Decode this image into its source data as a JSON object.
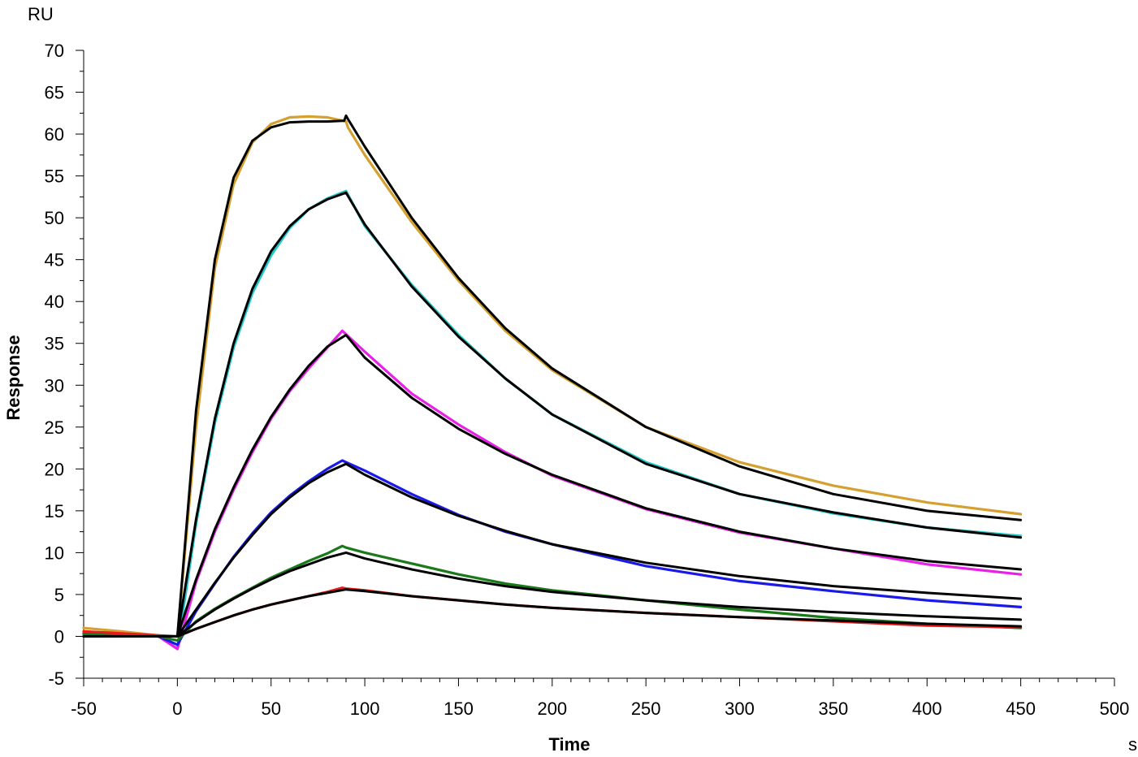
{
  "chart_data": {
    "type": "line",
    "title": "",
    "xlabel": "Time",
    "ylabel": "Response",
    "x_unit": "s",
    "y_unit": "RU",
    "xlim": [
      -50,
      500
    ],
    "ylim": [
      -5,
      70
    ],
    "x_ticks": [
      -50,
      0,
      50,
      100,
      150,
      200,
      250,
      300,
      350,
      400,
      450,
      500
    ],
    "y_ticks": [
      -5,
      0,
      5,
      10,
      15,
      20,
      25,
      30,
      35,
      40,
      45,
      50,
      55,
      60,
      65,
      70
    ],
    "x_tick_labels": [
      "-50",
      "0",
      "50",
      "100",
      "150",
      "200",
      "250",
      "300",
      "350",
      "400",
      "450",
      "500"
    ],
    "y_tick_labels": [
      "-5",
      "0",
      "5",
      "10",
      "15",
      "20",
      "25",
      "30",
      "35",
      "40",
      "45",
      "50",
      "55",
      "60",
      "65",
      "70"
    ],
    "grid": false,
    "legend": "none",
    "series": [
      {
        "color": "#d4a030",
        "x": [
          -50,
          -30,
          -10,
          0,
          10,
          20,
          30,
          40,
          50,
          60,
          70,
          80,
          90,
          91,
          100,
          125,
          150,
          175,
          200,
          250,
          300,
          350,
          400,
          450
        ],
        "y": [
          1.0,
          0.6,
          0.1,
          0.0,
          25.0,
          44.0,
          54.0,
          59.0,
          61.2,
          62.0,
          62.1,
          62.0,
          61.5,
          60.8,
          57.5,
          49.5,
          42.5,
          36.5,
          31.8,
          25.0,
          20.8,
          18.0,
          16.0,
          14.6
        ]
      },
      {
        "color": "#20c8c8",
        "x": [
          -50,
          -10,
          0,
          10,
          20,
          30,
          40,
          50,
          60,
          70,
          80,
          90,
          100,
          125,
          150,
          175,
          200,
          250,
          300,
          350,
          400,
          450
        ],
        "y": [
          0.5,
          0.1,
          -1.5,
          13.5,
          25.5,
          34.5,
          41.0,
          45.5,
          48.8,
          51.0,
          52.3,
          53.2,
          49.0,
          42.0,
          36.0,
          30.8,
          26.5,
          20.8,
          17.0,
          14.7,
          13.0,
          12.0
        ]
      },
      {
        "color": "#e820e8",
        "x": [
          -50,
          -10,
          0,
          10,
          20,
          30,
          40,
          50,
          60,
          70,
          80,
          88,
          100,
          125,
          150,
          175,
          200,
          250,
          300,
          350,
          400,
          450
        ],
        "y": [
          0.5,
          0.0,
          -1.5,
          6.5,
          12.5,
          17.5,
          22.0,
          26.0,
          29.3,
          32.0,
          34.5,
          36.5,
          34.0,
          29.0,
          25.3,
          22.0,
          19.2,
          15.2,
          12.4,
          10.5,
          8.6,
          7.4
        ]
      },
      {
        "color": "#1a1ae8",
        "x": [
          -50,
          -10,
          0,
          10,
          20,
          30,
          40,
          50,
          60,
          70,
          80,
          88,
          90,
          100,
          125,
          150,
          175,
          200,
          250,
          300,
          350,
          400,
          450
        ],
        "y": [
          0.3,
          0.0,
          -1.0,
          3.0,
          6.3,
          9.5,
          12.3,
          14.8,
          16.8,
          18.5,
          20.0,
          21.0,
          20.8,
          19.8,
          17.0,
          14.5,
          12.5,
          11.0,
          8.4,
          6.6,
          5.4,
          4.3,
          3.5
        ]
      },
      {
        "color": "#1a7a1a",
        "x": [
          -50,
          -10,
          0,
          10,
          20,
          30,
          40,
          50,
          60,
          70,
          80,
          88,
          90,
          100,
          125,
          150,
          175,
          200,
          250,
          300,
          350,
          400,
          450
        ],
        "y": [
          0.3,
          0.0,
          -0.5,
          1.8,
          3.3,
          4.6,
          5.8,
          7.0,
          8.0,
          9.0,
          9.9,
          10.8,
          10.6,
          10.0,
          8.7,
          7.4,
          6.3,
          5.5,
          4.3,
          3.2,
          2.2,
          1.5,
          1.0
        ]
      },
      {
        "color": "#e81a1a",
        "x": [
          -50,
          -10,
          0,
          10,
          20,
          30,
          40,
          50,
          60,
          70,
          80,
          88,
          90,
          100,
          125,
          150,
          175,
          200,
          250,
          300,
          350,
          400,
          450
        ],
        "y": [
          0.6,
          0.1,
          0.0,
          0.9,
          1.7,
          2.5,
          3.2,
          3.8,
          4.3,
          4.8,
          5.3,
          5.8,
          5.7,
          5.5,
          4.8,
          4.3,
          3.8,
          3.4,
          2.8,
          2.3,
          1.8,
          1.3,
          1.1
        ]
      },
      {
        "color": "#000000",
        "x": [
          -50,
          0,
          10,
          20,
          30,
          40,
          50,
          60,
          70,
          80,
          89,
          90,
          91,
          100,
          125,
          150,
          175,
          200,
          250,
          300,
          350,
          400,
          450
        ],
        "y": [
          0.0,
          0.0,
          27.0,
          45.0,
          54.8,
          59.2,
          60.8,
          61.4,
          61.5,
          61.5,
          61.6,
          62.2,
          61.8,
          58.5,
          50.0,
          42.8,
          36.8,
          32.0,
          25.0,
          20.3,
          17.0,
          15.0,
          13.9
        ]
      },
      {
        "color": "#000000",
        "x": [
          -50,
          0,
          10,
          20,
          30,
          40,
          50,
          60,
          70,
          80,
          90,
          100,
          125,
          150,
          175,
          200,
          250,
          300,
          350,
          400,
          450
        ],
        "y": [
          0.0,
          0.0,
          14.0,
          26.0,
          35.0,
          41.5,
          46.0,
          49.0,
          51.0,
          52.2,
          53.0,
          49.2,
          41.8,
          35.8,
          30.8,
          26.5,
          20.6,
          17.0,
          14.8,
          13.0,
          11.8
        ]
      },
      {
        "color": "#000000",
        "x": [
          -50,
          0,
          10,
          20,
          30,
          40,
          50,
          60,
          70,
          80,
          90,
          100,
          125,
          150,
          175,
          200,
          250,
          300,
          350,
          400,
          450
        ],
        "y": [
          0.0,
          0.0,
          6.8,
          12.8,
          17.8,
          22.3,
          26.2,
          29.5,
          32.3,
          34.6,
          36.0,
          33.3,
          28.5,
          24.8,
          21.8,
          19.3,
          15.3,
          12.5,
          10.5,
          9.0,
          8.0
        ]
      },
      {
        "color": "#000000",
        "x": [
          -50,
          0,
          10,
          20,
          30,
          40,
          50,
          60,
          70,
          80,
          90,
          100,
          125,
          150,
          175,
          200,
          250,
          300,
          350,
          400,
          450
        ],
        "y": [
          0.0,
          0.0,
          3.2,
          6.4,
          9.4,
          12.1,
          14.6,
          16.6,
          18.3,
          19.6,
          20.6,
          19.3,
          16.6,
          14.4,
          12.6,
          11.0,
          8.8,
          7.2,
          6.0,
          5.2,
          4.5
        ]
      },
      {
        "color": "#000000",
        "x": [
          -50,
          0,
          10,
          20,
          30,
          40,
          50,
          60,
          70,
          80,
          90,
          100,
          125,
          150,
          175,
          200,
          250,
          300,
          350,
          400,
          450
        ],
        "y": [
          0.0,
          0.0,
          1.7,
          3.2,
          4.5,
          5.7,
          6.8,
          7.8,
          8.6,
          9.4,
          10.0,
          9.3,
          8.0,
          6.9,
          6.0,
          5.3,
          4.3,
          3.5,
          2.9,
          2.4,
          2.0
        ]
      },
      {
        "color": "#000000",
        "x": [
          -50,
          0,
          10,
          20,
          30,
          40,
          50,
          60,
          70,
          80,
          90,
          100,
          125,
          150,
          175,
          200,
          250,
          300,
          350,
          400,
          450
        ],
        "y": [
          0.0,
          0.0,
          0.9,
          1.7,
          2.5,
          3.2,
          3.8,
          4.3,
          4.8,
          5.2,
          5.6,
          5.4,
          4.8,
          4.3,
          3.8,
          3.4,
          2.8,
          2.3,
          1.9,
          1.5,
          1.2
        ]
      }
    ]
  }
}
